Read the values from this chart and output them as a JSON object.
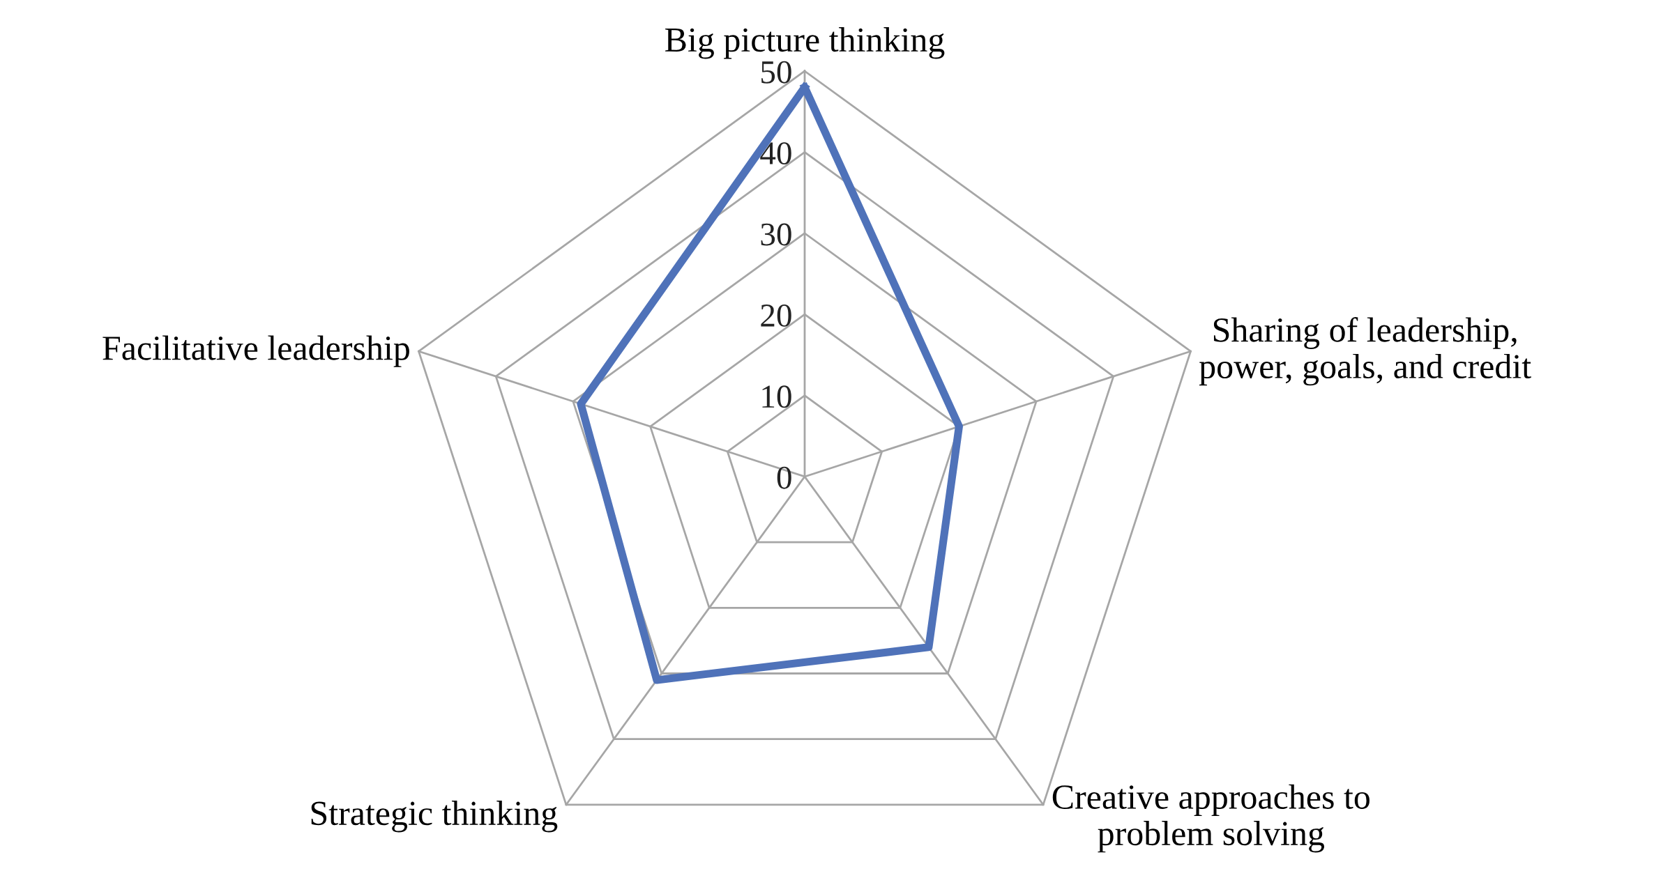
{
  "chart_data": {
    "type": "radar",
    "categories": [
      "Big picture thinking",
      "Sharing of leadership,\npower, goals, and credit",
      "Creative approaches to\nproblem solving",
      "Strategic thinking",
      "Facilitative leadership"
    ],
    "series": [
      {
        "color": "#4f72b9",
        "values": [
          48,
          20,
          26,
          31,
          29
        ]
      }
    ],
    "ylim": [
      0,
      50
    ],
    "yticks": [
      0,
      10,
      20,
      30,
      40,
      50
    ],
    "grid": true,
    "line_style": "solid"
  }
}
